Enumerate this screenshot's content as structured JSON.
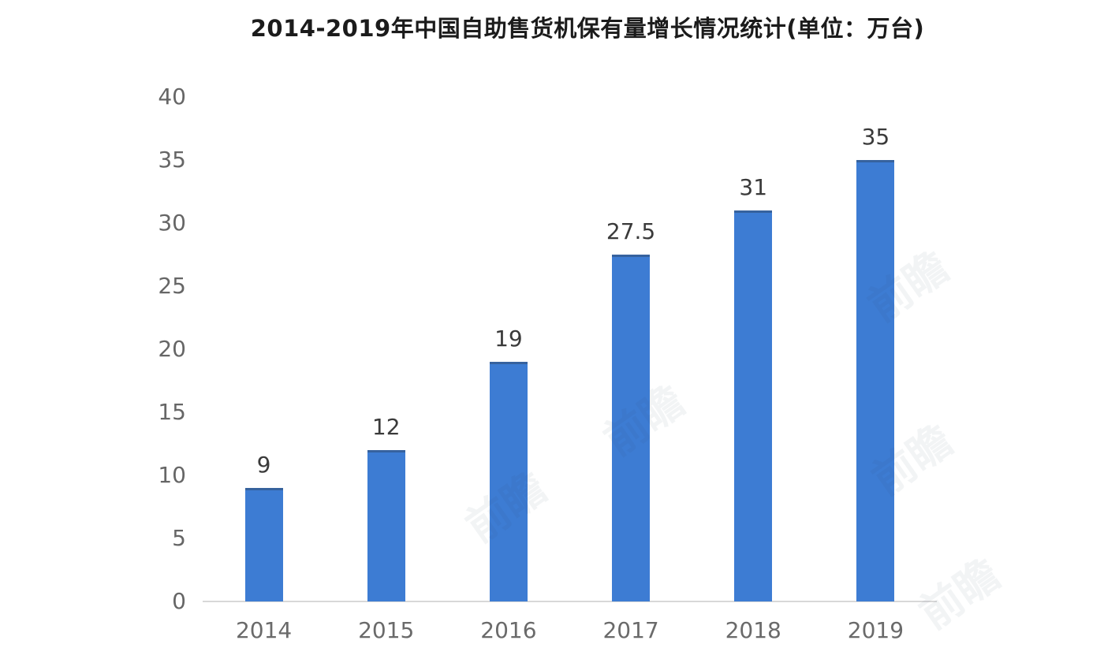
{
  "chart_data": {
    "type": "bar",
    "title": "2014-2019年中国自助售货机保有量增长情况统计(单位：万台)",
    "categories": [
      "2014",
      "2015",
      "2016",
      "2017",
      "2018",
      "2019"
    ],
    "values": [
      9,
      12,
      19,
      27.5,
      31,
      35
    ],
    "xlabel": "",
    "ylabel": "",
    "ylim": [
      0,
      40
    ],
    "yticks": [
      0,
      5,
      10,
      15,
      20,
      25,
      30,
      35,
      40
    ],
    "grid": false,
    "legend": "none",
    "colors": {
      "bar": "#3D7CD3",
      "axis_line": "#D8D8D8",
      "y_tick_label": "#666666",
      "x_tick_label": "#6A6A6A",
      "value_label": "#3A3A3A",
      "title": "#1B1B1B"
    }
  },
  "watermark": {
    "text": "前瞻",
    "color": "#2E4662"
  }
}
